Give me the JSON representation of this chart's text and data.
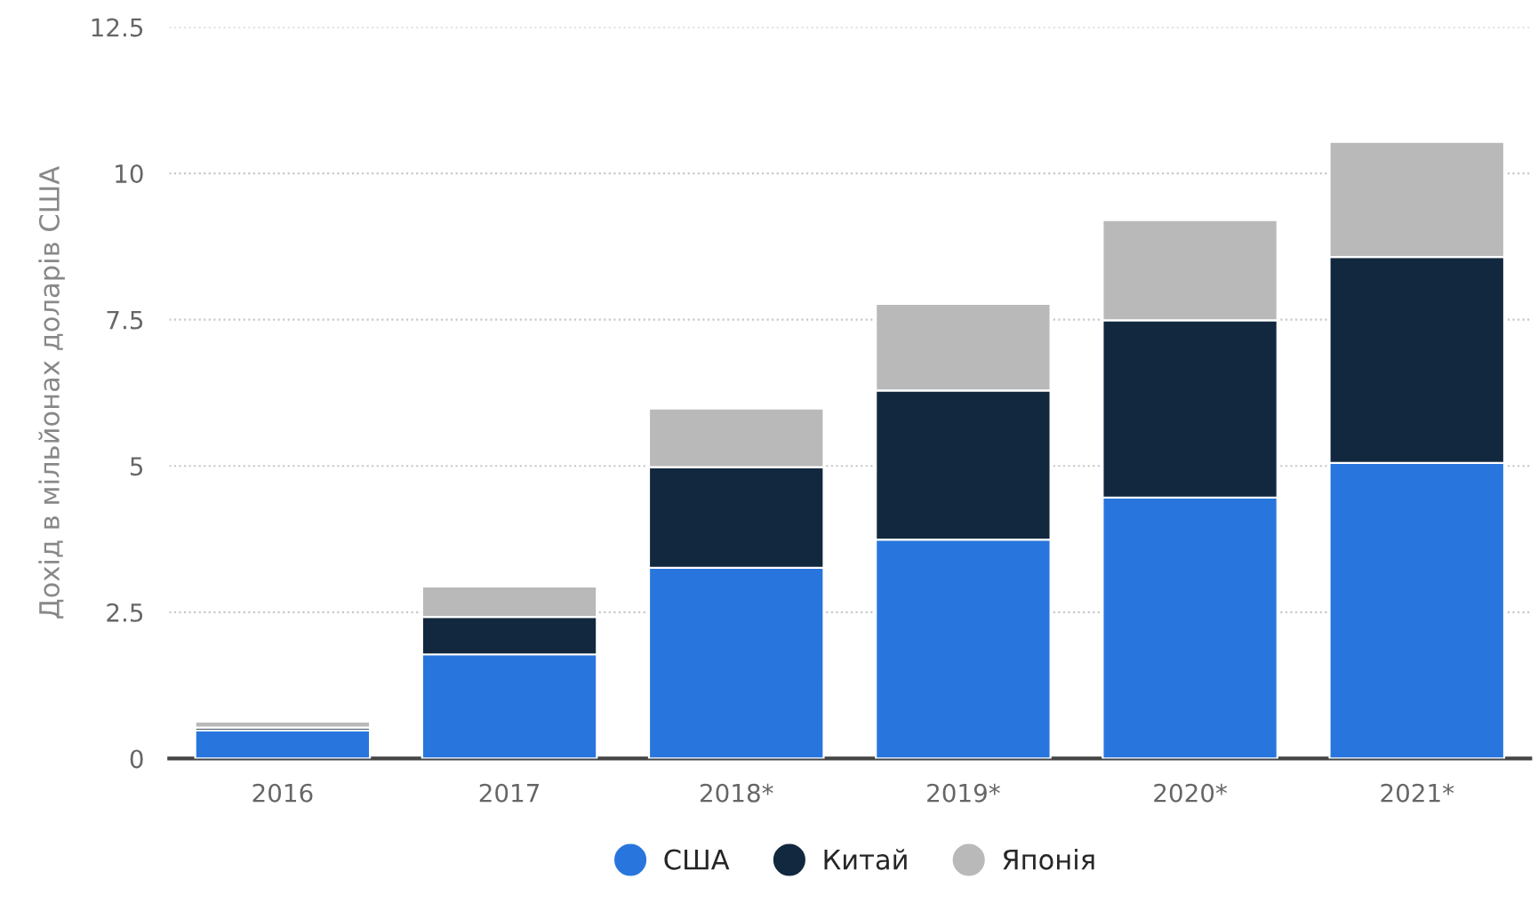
{
  "chart_data": {
    "type": "bar",
    "stacked": true,
    "ylabel": "Дохід в мільйонах доларів США",
    "categories": [
      "2016",
      "2017",
      "2018*",
      "2019*",
      "2020*",
      "2021*"
    ],
    "series": [
      {
        "name": "США",
        "color": "#2876dd",
        "values": [
          0.48,
          1.78,
          3.26,
          3.74,
          4.46,
          5.05
        ]
      },
      {
        "name": "Китай",
        "color": "#12283e",
        "values": [
          0.05,
          0.64,
          1.72,
          2.55,
          3.03,
          3.52
        ]
      },
      {
        "name": "Японія",
        "color": "#b9b9b9",
        "values": [
          0.1,
          0.52,
          1.0,
          1.48,
          1.71,
          1.97
        ]
      }
    ],
    "ylim": [
      0,
      12.5
    ],
    "yticks": [
      0,
      2.5,
      5,
      7.5,
      10,
      12.5
    ],
    "grid": "y",
    "legend": "bottom"
  }
}
